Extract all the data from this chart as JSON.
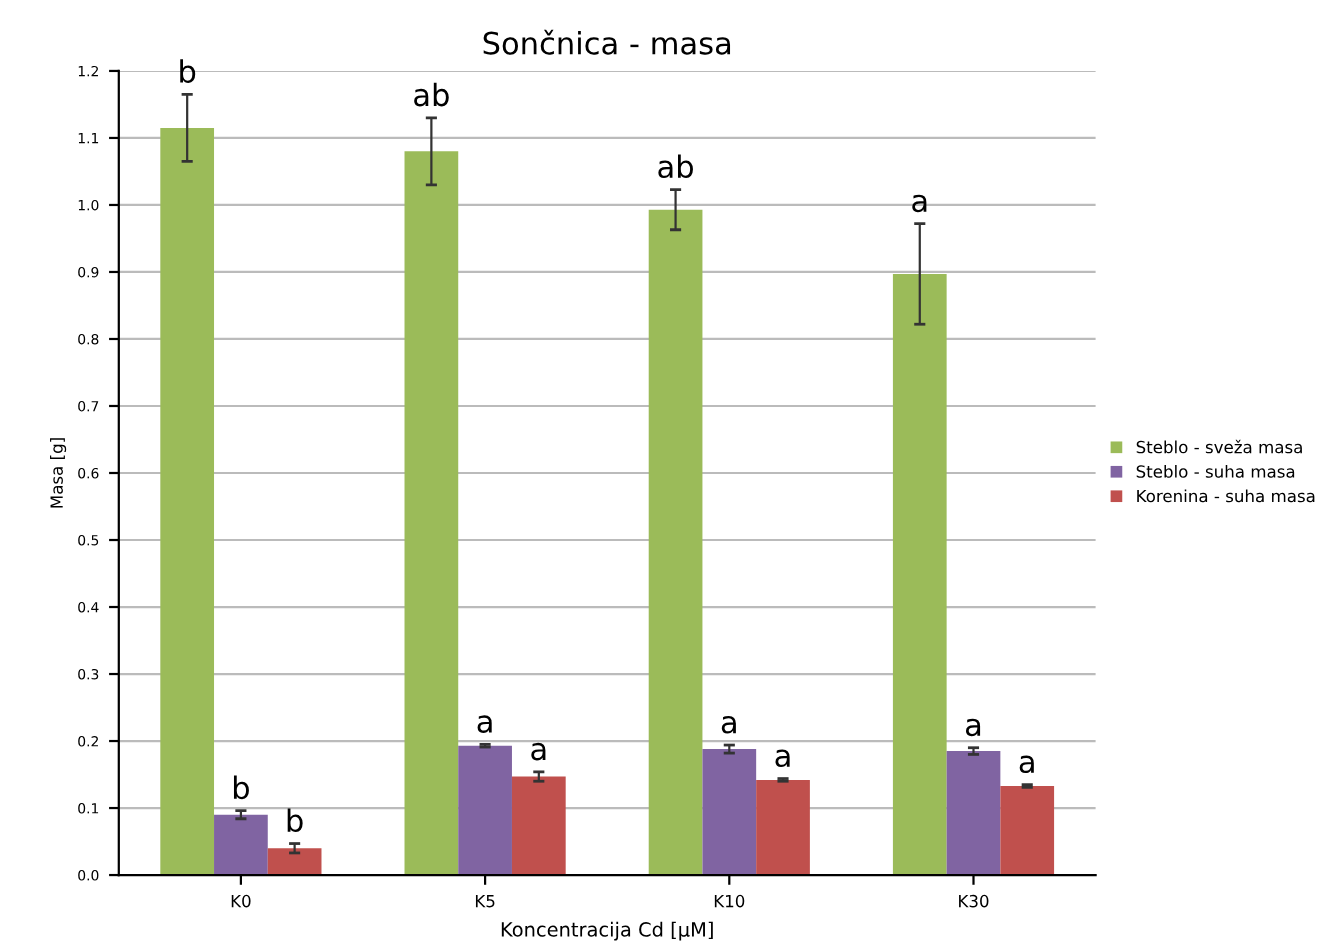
{
  "chart_data": {
    "type": "bar",
    "title": "Sončnica - masa",
    "xlabel": "Koncentracija Cd [µM]",
    "ylabel": "Masa [g]",
    "categories": [
      "K0",
      "K5",
      "K10",
      "K30"
    ],
    "series": [
      {
        "name": "Steblo - sveža masa",
        "color": "#9bbb59",
        "values": [
          1.115,
          1.08,
          0.993,
          0.897
        ],
        "errors": [
          0.05,
          0.05,
          0.03,
          0.075
        ]
      },
      {
        "name": "Steblo - suha masa",
        "color": "#8064a2",
        "values": [
          0.09,
          0.193,
          0.188,
          0.185
        ],
        "errors": [
          0.006,
          0.002,
          0.006,
          0.005
        ]
      },
      {
        "name": "Korenina - suha masa",
        "color": "#c0504d",
        "values": [
          0.04,
          0.147,
          0.142,
          0.133
        ],
        "errors": [
          0.007,
          0.007,
          0.002,
          0.002
        ]
      }
    ],
    "annotations": [
      "b",
      "b",
      "b",
      "ab",
      "a",
      "a",
      "ab",
      "a",
      "a",
      "a",
      "a",
      "a"
    ],
    "ylim": [
      0.0,
      1.2
    ],
    "yticks": [
      {
        "value": 0,
        "label": "0.0"
      },
      0.1,
      0.2,
      0.3,
      0.4,
      0.5,
      0.6,
      0.7,
      0.8,
      0.9,
      {
        "value": 1,
        "label": "1.0"
      },
      1.1,
      1.2
    ],
    "grid": "y",
    "legend": "right"
  }
}
